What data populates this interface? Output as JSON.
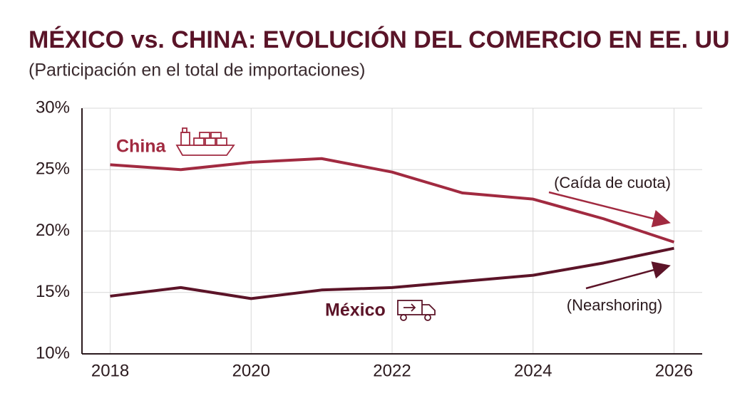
{
  "chart_data": {
    "type": "line",
    "title": "MÉXICO vs. CHINA: EVOLUCIÓN DEL COMERCIO EN EE. UU.",
    "subtitle": "(Participación en el total de importaciones)",
    "x": [
      2018,
      2019,
      2020,
      2021,
      2022,
      2023,
      2024,
      2025,
      2026
    ],
    "series": [
      {
        "name": "China",
        "color": "#a12a40",
        "values": [
          25.4,
          25.0,
          25.6,
          25.9,
          24.8,
          23.1,
          22.6,
          21.0,
          19.1
        ]
      },
      {
        "name": "México",
        "color": "#5c1428",
        "values": [
          14.7,
          15.4,
          14.5,
          15.2,
          15.4,
          15.9,
          16.4,
          17.4,
          18.6
        ]
      }
    ],
    "annotations": [
      "(Caída de cuota)",
      "(Nearshoring)"
    ],
    "xlim": [
      2017.6,
      2026.4
    ],
    "xticks": [
      2018,
      2020,
      2022,
      2024,
      2026
    ],
    "ylim": [
      10,
      30
    ],
    "yticks": [
      {
        "value": 10,
        "label": "10%"
      },
      {
        "value": 15,
        "label": "15%"
      },
      {
        "value": 20,
        "label": "20%"
      },
      {
        "value": 25,
        "label": "25%"
      },
      {
        "value": 30,
        "label": "30%"
      }
    ],
    "grid": true
  }
}
